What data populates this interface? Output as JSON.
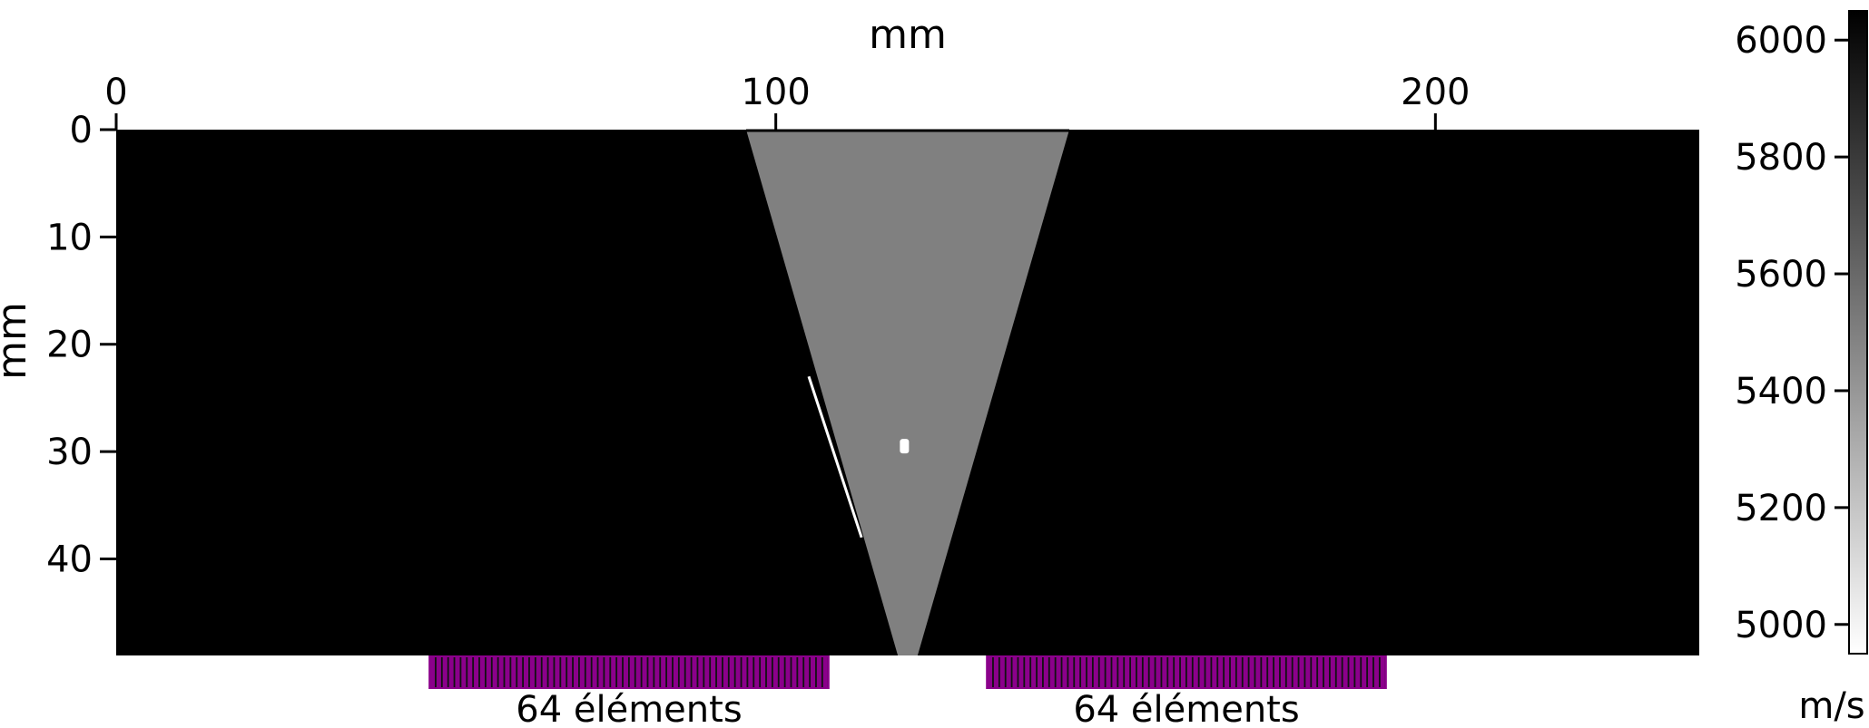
{
  "chart_data": {
    "type": "heatmap",
    "xlabel": "mm",
    "ylabel": "mm",
    "xlim": [
      0,
      240
    ],
    "ylim": [
      0,
      49
    ],
    "xticks": [
      "0",
      "100",
      "200"
    ],
    "xtick_values": [
      0,
      100,
      200
    ],
    "yticks": [
      "0",
      "10",
      "20",
      "30",
      "40"
    ],
    "ytick_values": [
      0,
      10,
      20,
      30,
      40
    ],
    "colorbar": {
      "label": "m/s",
      "vmin": 4950,
      "vmax": 6050,
      "ticks": [
        "5000",
        "5200",
        "5400",
        "5600",
        "5800",
        "6000"
      ],
      "tick_values": [
        5000,
        5200,
        5400,
        5600,
        5800,
        6000
      ],
      "colormap": "gray_r"
    },
    "regions": {
      "background_value": 6050,
      "weld_value": 5500,
      "weld_top_x": [
        95.5,
        144.5
      ],
      "weld_bottom_x": [
        118.5,
        121.5
      ],
      "defect": {
        "x": 119.5,
        "y": 29.5,
        "value": 4950
      },
      "crack_line": {
        "x1": 105,
        "y1": 23,
        "x2": 113,
        "y2": 38,
        "value": 4950
      }
    },
    "probes": [
      {
        "label": "64 éléments",
        "x_start": 47.5,
        "x_end": 108,
        "elements": 64,
        "color": "#8b008b"
      },
      {
        "label": "64 éléments",
        "x_start": 132,
        "x_end": 192.5,
        "elements": 64,
        "color": "#8b008b"
      }
    ]
  }
}
